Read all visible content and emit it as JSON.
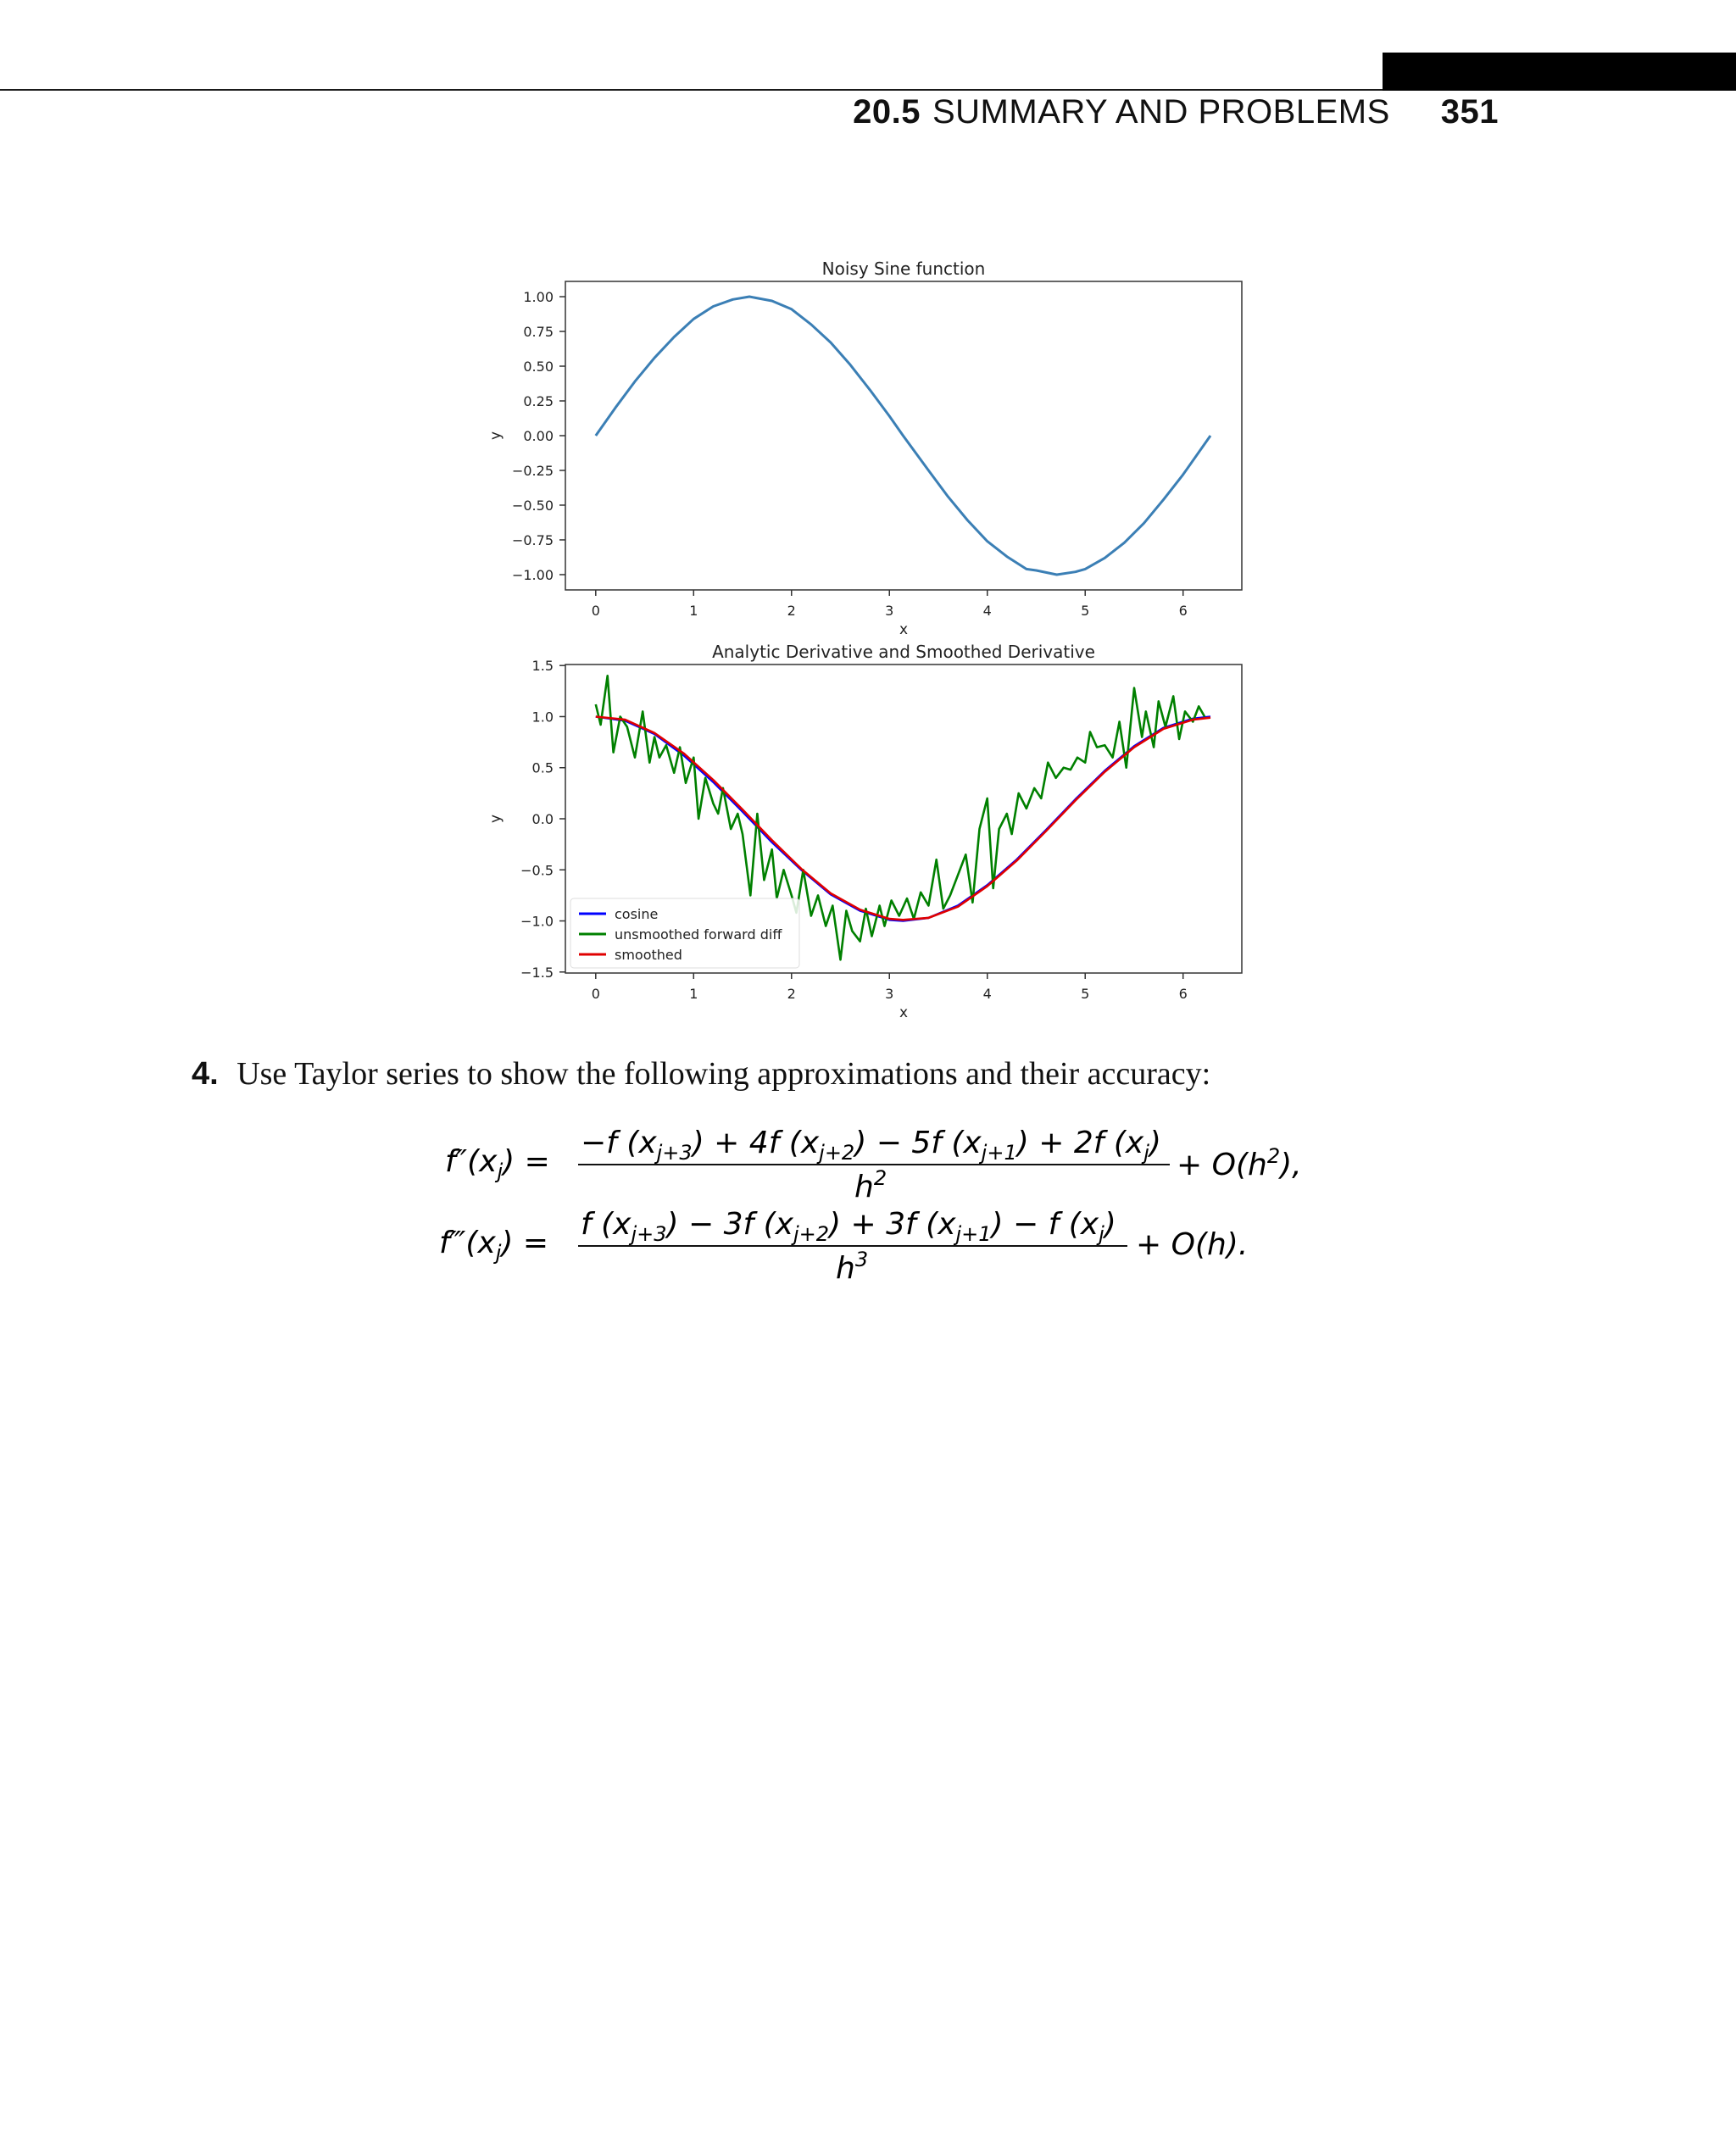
{
  "header": {
    "section_number": "20.5",
    "section_title": "SUMMARY AND PROBLEMS",
    "page_number": "351"
  },
  "chart_data": [
    {
      "type": "line",
      "title": "Noisy Sine function",
      "xlabel": "x",
      "ylabel": "y",
      "xlim": [
        -0.31,
        6.6
      ],
      "ylim": [
        -1.11,
        1.11
      ],
      "xticks": [
        "0",
        "1",
        "2",
        "3",
        "4",
        "5",
        "6"
      ],
      "yticks": [
        "1.00",
        "0.75",
        "0.50",
        "0.25",
        "0.00",
        "−0.25",
        "−0.50",
        "−0.75",
        "−1.00"
      ],
      "grid": false,
      "series": [
        {
          "color": "#3b7fb5",
          "x": [
            0,
            0.2,
            0.4,
            0.6,
            0.8,
            1.0,
            1.2,
            1.4,
            1.57,
            1.8,
            2.0,
            2.2,
            2.4,
            2.6,
            2.8,
            3.0,
            3.14,
            3.4,
            3.6,
            3.8,
            4.0,
            4.2,
            4.4,
            4.5,
            4.71,
            4.9,
            5.0,
            5.2,
            5.4,
            5.6,
            5.8,
            6.0,
            6.28
          ],
          "y": [
            0.0,
            0.2,
            0.39,
            0.56,
            0.71,
            0.84,
            0.93,
            0.98,
            1.0,
            0.97,
            0.91,
            0.8,
            0.67,
            0.51,
            0.33,
            0.14,
            0.0,
            -0.25,
            -0.44,
            -0.61,
            -0.76,
            -0.87,
            -0.96,
            -0.97,
            -1.0,
            -0.98,
            -0.96,
            -0.88,
            -0.77,
            -0.63,
            -0.46,
            -0.28,
            0.0
          ]
        }
      ]
    },
    {
      "type": "line",
      "title": "Analytic Derivative and Smoothed Derivative",
      "xlabel": "x",
      "ylabel": "y",
      "xlim": [
        -0.31,
        6.6
      ],
      "ylim": [
        -1.51,
        1.51
      ],
      "xticks": [
        "0",
        "1",
        "2",
        "3",
        "4",
        "5",
        "6"
      ],
      "yticks": [
        "1.5",
        "1.0",
        "0.5",
        "0.0",
        "−0.5",
        "−1.0",
        "−1.5"
      ],
      "legend_position": "lower-left",
      "grid": false,
      "series": [
        {
          "name": "cosine",
          "color": "#0000ff",
          "x": [
            0,
            0.3,
            0.6,
            0.9,
            1.2,
            1.5,
            1.8,
            2.1,
            2.4,
            2.7,
            3.0,
            3.14,
            3.4,
            3.7,
            4.0,
            4.3,
            4.6,
            4.9,
            5.2,
            5.5,
            5.8,
            6.1,
            6.28
          ],
          "y": [
            1.0,
            0.96,
            0.83,
            0.62,
            0.36,
            0.07,
            -0.23,
            -0.5,
            -0.74,
            -0.9,
            -0.99,
            -1.0,
            -0.97,
            -0.85,
            -0.65,
            -0.4,
            -0.11,
            0.19,
            0.47,
            0.71,
            0.89,
            0.98,
            1.0
          ]
        },
        {
          "name": "unsmoothed forward diff",
          "color": "#008000",
          "x": [
            0,
            0.05,
            0.12,
            0.18,
            0.25,
            0.32,
            0.4,
            0.48,
            0.55,
            0.6,
            0.65,
            0.72,
            0.8,
            0.86,
            0.92,
            1.0,
            1.05,
            1.12,
            1.2,
            1.25,
            1.3,
            1.38,
            1.45,
            1.5,
            1.58,
            1.65,
            1.72,
            1.8,
            1.85,
            1.92,
            2.0,
            2.05,
            2.12,
            2.2,
            2.27,
            2.35,
            2.42,
            2.5,
            2.56,
            2.62,
            2.7,
            2.76,
            2.82,
            2.9,
            2.95,
            3.02,
            3.1,
            3.18,
            3.25,
            3.32,
            3.4,
            3.48,
            3.55,
            3.62,
            3.7,
            3.78,
            3.85,
            3.92,
            4.0,
            4.06,
            4.12,
            4.2,
            4.25,
            4.32,
            4.4,
            4.48,
            4.55,
            4.62,
            4.7,
            4.78,
            4.85,
            4.92,
            5.0,
            5.05,
            5.12,
            5.2,
            5.28,
            5.35,
            5.42,
            5.5,
            5.58,
            5.62,
            5.7,
            5.75,
            5.82,
            5.9,
            5.96,
            6.02,
            6.1,
            6.16,
            6.22
          ],
          "y": [
            1.12,
            0.92,
            1.4,
            0.65,
            1.0,
            0.9,
            0.6,
            1.05,
            0.55,
            0.8,
            0.6,
            0.72,
            0.45,
            0.7,
            0.35,
            0.6,
            0.0,
            0.4,
            0.15,
            0.05,
            0.3,
            -0.1,
            0.05,
            -0.15,
            -0.75,
            0.05,
            -0.6,
            -0.3,
            -0.78,
            -0.5,
            -0.75,
            -0.92,
            -0.5,
            -0.95,
            -0.75,
            -1.05,
            -0.85,
            -1.38,
            -0.9,
            -1.1,
            -1.2,
            -0.88,
            -1.15,
            -0.85,
            -1.05,
            -0.8,
            -0.95,
            -0.78,
            -0.98,
            -0.72,
            -0.85,
            -0.4,
            -0.88,
            -0.75,
            -0.55,
            -0.35,
            -0.82,
            -0.1,
            0.2,
            -0.68,
            -0.1,
            0.05,
            -0.15,
            0.25,
            0.1,
            0.3,
            0.2,
            0.55,
            0.4,
            0.5,
            0.48,
            0.6,
            0.55,
            0.85,
            0.7,
            0.72,
            0.6,
            0.95,
            0.5,
            1.28,
            0.8,
            1.05,
            0.7,
            1.15,
            0.9,
            1.2,
            0.78,
            1.05,
            0.95,
            1.1,
            1.0
          ]
        },
        {
          "name": "smoothed",
          "color": "#e00000",
          "x": [
            0,
            0.3,
            0.6,
            0.9,
            1.2,
            1.5,
            1.8,
            2.1,
            2.4,
            2.7,
            3.0,
            3.14,
            3.4,
            3.7,
            4.0,
            4.3,
            4.6,
            4.9,
            5.2,
            5.5,
            5.8,
            6.1,
            6.28
          ],
          "y": [
            1.0,
            0.97,
            0.84,
            0.64,
            0.38,
            0.09,
            -0.21,
            -0.49,
            -0.73,
            -0.89,
            -0.98,
            -0.99,
            -0.97,
            -0.86,
            -0.66,
            -0.41,
            -0.12,
            0.18,
            0.46,
            0.7,
            0.88,
            0.97,
            0.99
          ]
        }
      ]
    }
  ],
  "problem": {
    "number": "4.",
    "text": "Use Taylor series to show the following approximations and their accuracy:"
  }
}
